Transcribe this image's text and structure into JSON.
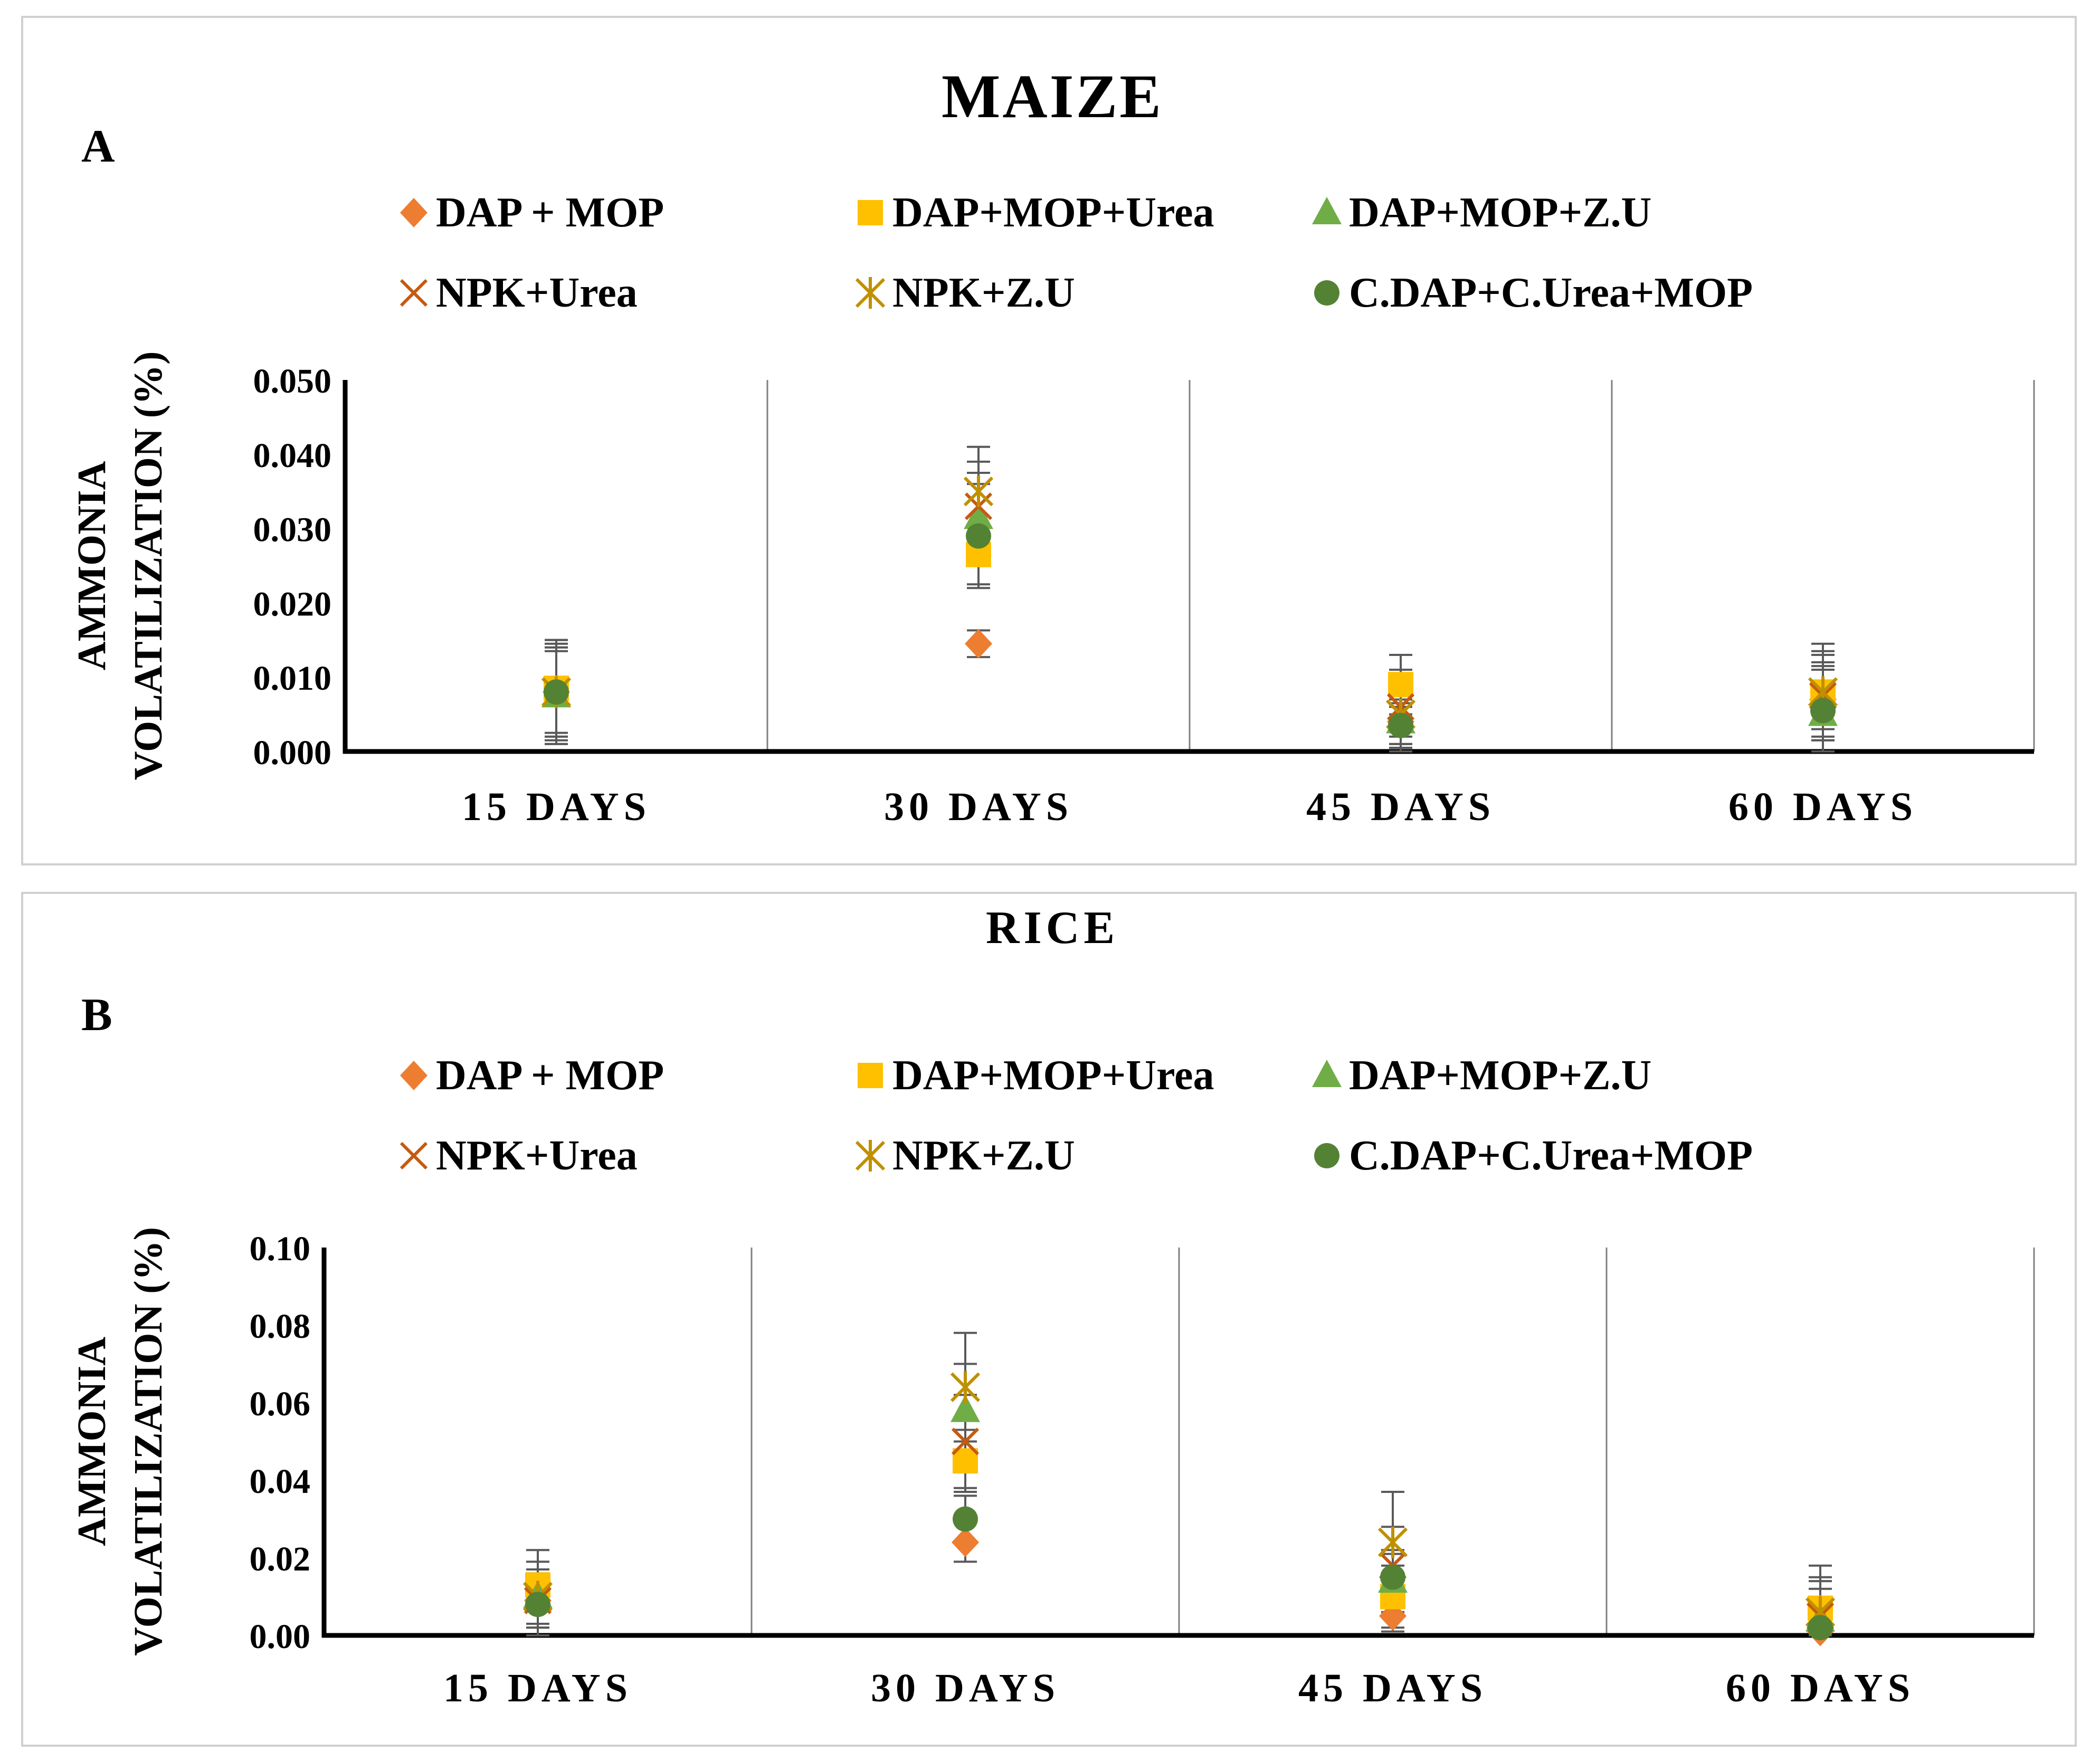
{
  "figure": {
    "panels": [
      {
        "id": "A",
        "title": "MAIZE"
      },
      {
        "id": "B",
        "title": "RICE"
      }
    ]
  },
  "chart_data": [
    {
      "type": "scatter",
      "panel_label": "A",
      "title": "MAIZE",
      "ylabel_line1": "AMMONIA",
      "ylabel_line2": "VOLATILIZATION (%)",
      "xlabel": "",
      "categories": [
        "15 DAYS",
        "30 DAYS",
        "45 DAYS",
        "60 DAYS"
      ],
      "ylim": [
        0,
        0.05
      ],
      "yticks": [
        "0.000",
        "0.010",
        "0.020",
        "0.030",
        "0.040",
        "0.050"
      ],
      "legend_position": "top",
      "series": [
        {
          "name": "DAP + MOP",
          "marker": "diamond",
          "color": "#ED7D31",
          "values": [
            0.008,
            0.0145,
            0.004,
            0.007
          ],
          "errors": [
            0.006,
            0.0018,
            0.002,
            0.005
          ]
        },
        {
          "name": "DAP+MOP+Urea",
          "marker": "square",
          "color": "#FFC000",
          "values": [
            0.0085,
            0.0265,
            0.009,
            0.008
          ],
          "errors": [
            0.006,
            0.004,
            0.004,
            0.005
          ]
        },
        {
          "name": "DAP+MOP+Z.U",
          "marker": "triangle",
          "color": "#70AD47",
          "values": [
            0.0075,
            0.0315,
            0.004,
            0.005
          ],
          "errors": [
            0.006,
            0.006,
            0.003,
            0.006
          ]
        },
        {
          "name": "NPK+Urea",
          "marker": "x",
          "color": "#C55A11",
          "values": [
            0.008,
            0.033,
            0.006,
            0.0075
          ],
          "errors": [
            0.006,
            0.006,
            0.005,
            0.006
          ]
        },
        {
          "name": "NPK+Z.U",
          "marker": "star",
          "color": "#BF9000",
          "values": [
            0.008,
            0.035,
            0.005,
            0.008
          ],
          "errors": [
            0.007,
            0.006,
            0.005,
            0.0065
          ]
        },
        {
          "name": "C.DAP+C.Urea+MOP",
          "marker": "circle",
          "color": "#548235",
          "values": [
            0.008,
            0.029,
            0.0035,
            0.0055
          ],
          "errors": [
            0.007,
            0.007,
            0.003,
            0.006
          ]
        }
      ]
    },
    {
      "type": "scatter",
      "panel_label": "B",
      "title": "RICE",
      "ylabel_line1": "AMMONIA",
      "ylabel_line2": "VOLATILIZATION (%)",
      "xlabel": "",
      "categories": [
        "15 DAYS",
        "30 DAYS",
        "45 DAYS",
        "60 DAYS"
      ],
      "ylim": [
        0,
        0.1
      ],
      "yticks": [
        "0.00",
        "0.02",
        "0.04",
        "0.06",
        "0.08",
        "0.10"
      ],
      "legend_position": "top",
      "series": [
        {
          "name": "DAP + MOP",
          "marker": "diamond",
          "color": "#ED7D31",
          "values": [
            0.009,
            0.024,
            0.005,
            0.001
          ],
          "errors": [
            0.006,
            0.005,
            0.004,
            0.003
          ]
        },
        {
          "name": "DAP+MOP+Urea",
          "marker": "square",
          "color": "#FFC000",
          "values": [
            0.013,
            0.045,
            0.01,
            0.007
          ],
          "errors": [
            0.006,
            0.008,
            0.008,
            0.008
          ]
        },
        {
          "name": "DAP+MOP+Z.U",
          "marker": "triangle",
          "color": "#70AD47",
          "values": [
            0.01,
            0.058,
            0.014,
            0.004
          ],
          "errors": [
            0.007,
            0.012,
            0.008,
            0.008
          ]
        },
        {
          "name": "NPK+Urea",
          "marker": "x",
          "color": "#C55A11",
          "values": [
            0.009,
            0.05,
            0.018,
            0.005
          ],
          "errors": [
            0.007,
            0.012,
            0.01,
            0.009
          ]
        },
        {
          "name": "NPK+Z.U",
          "marker": "star",
          "color": "#BF9000",
          "values": [
            0.01,
            0.064,
            0.024,
            0.006
          ],
          "errors": [
            0.012,
            0.014,
            0.013,
            0.012
          ]
        },
        {
          "name": "C.DAP+C.Urea+MOP",
          "marker": "circle",
          "color": "#548235",
          "values": [
            0.008,
            0.03,
            0.015,
            0.002
          ],
          "errors": [
            0.006,
            0.006,
            0.006,
            0.005
          ]
        }
      ]
    }
  ]
}
